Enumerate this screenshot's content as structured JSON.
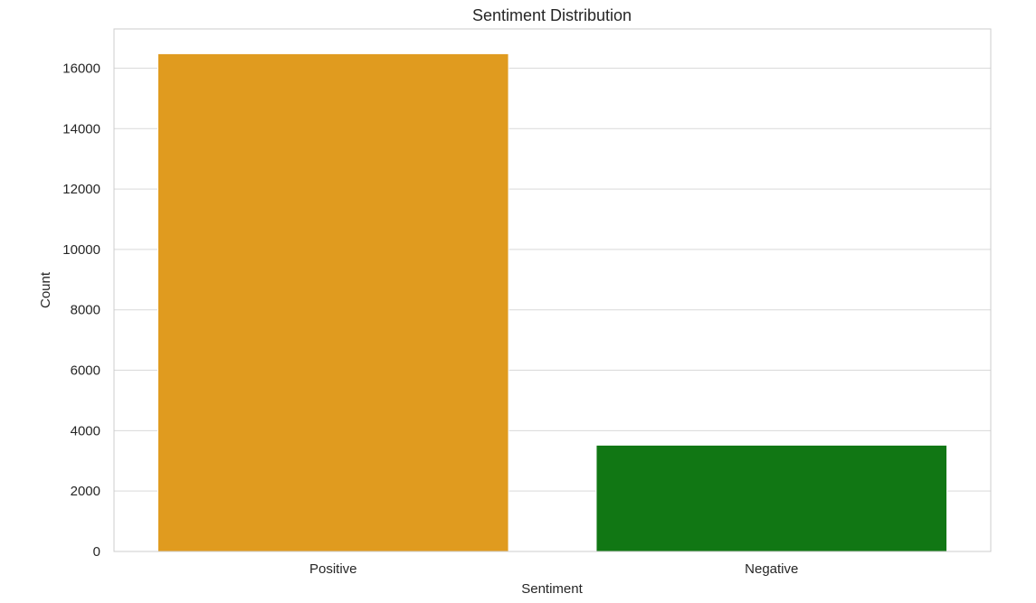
{
  "chart_data": {
    "type": "bar",
    "title": "Sentiment Distribution",
    "xlabel": "Sentiment",
    "ylabel": "Count",
    "categories": [
      "Positive",
      "Negative"
    ],
    "values": [
      16480,
      3520
    ],
    "colors": [
      "#e09b1f",
      "#117714"
    ],
    "ylim": [
      0,
      17300
    ],
    "yticks": [
      0,
      2000,
      4000,
      6000,
      8000,
      10000,
      12000,
      14000,
      16000
    ],
    "grid": true,
    "grid_color": "#d9d9d9",
    "frame_color": "#cccccc",
    "background": "#ffffff"
  }
}
